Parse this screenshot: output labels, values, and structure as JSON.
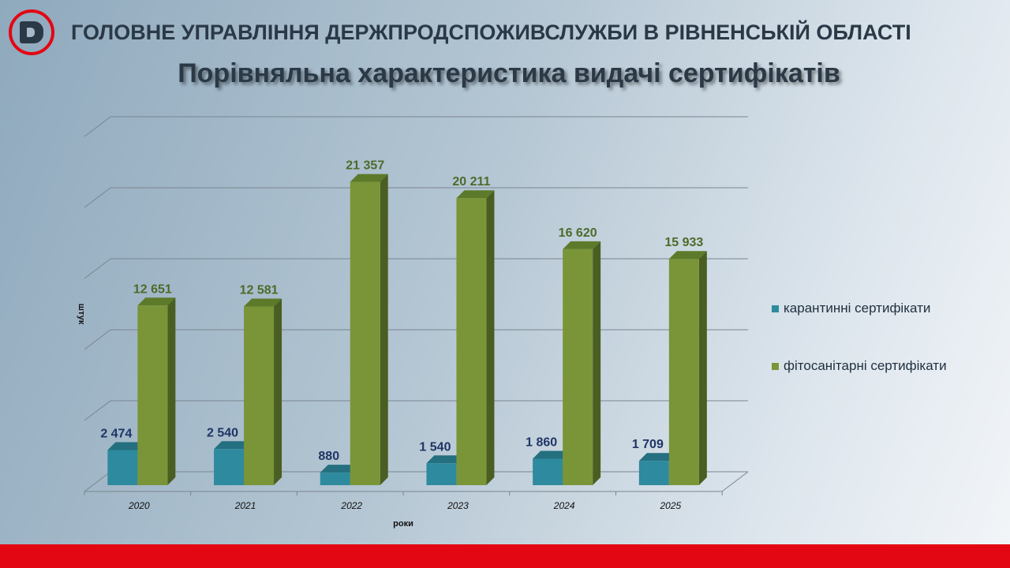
{
  "header": {
    "organization": "ГОЛОВНЕ УПРАВЛІННЯ ДЕРЖПРОДСПОЖИВСЛУЖБИ В РІВНЕНСЬКІЙ ОБЛАСТІ",
    "title": "Порівняльна характеристика видачі сертифікатів"
  },
  "colors": {
    "quarantine": "#2e8a9e",
    "phyto": "#7a9538",
    "quarantine_label": "#1f3565",
    "phyto_label": "#4e6a2a",
    "footer": "#e30613"
  },
  "chart_data": {
    "type": "bar",
    "title": "Порівняльна характеристика видачі сертифікатів",
    "xlabel": "роки",
    "ylabel": "штук",
    "categories": [
      "2020",
      "2021",
      "2022",
      "2023",
      "2024",
      "2025"
    ],
    "series": [
      {
        "name": "карантинні сертифікати",
        "values": [
          2474,
          2540,
          880,
          1540,
          1860,
          1709
        ],
        "labels": [
          "2 474",
          "2 540",
          "880",
          "1 540",
          "1 860",
          "1 709"
        ]
      },
      {
        "name": "фітосанітарні сертифікати",
        "values": [
          12651,
          12581,
          21357,
          20211,
          16620,
          15933
        ],
        "labels": [
          "12 651",
          "12 581",
          "21 357",
          "20 211",
          "16 620",
          "15 933"
        ]
      }
    ],
    "ylim": [
      0,
      25000
    ],
    "grid": true,
    "legend": "right"
  }
}
